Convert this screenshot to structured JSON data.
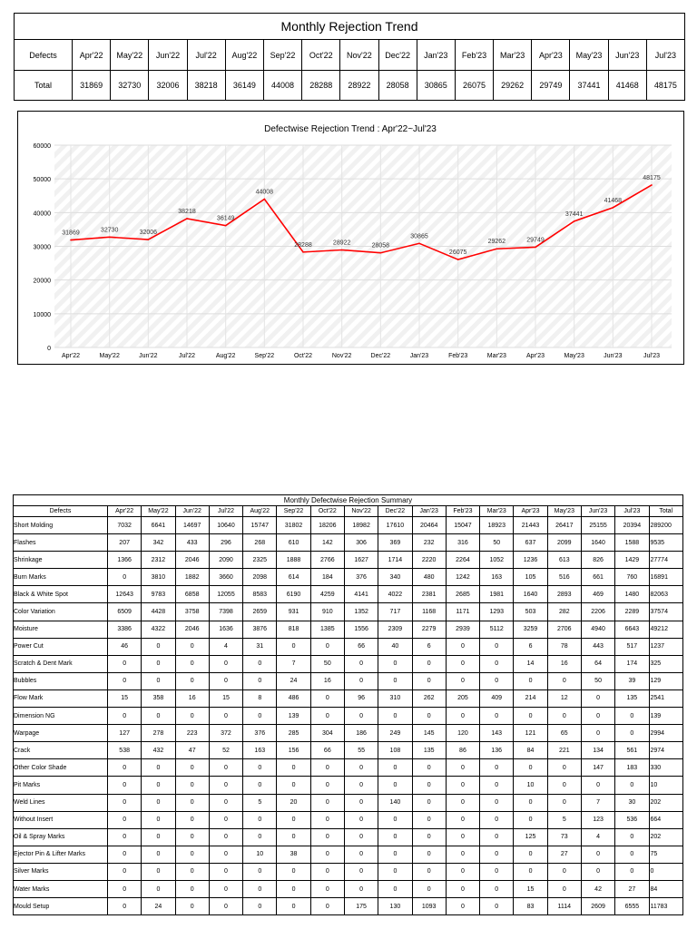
{
  "trend_table": {
    "title": "Monthly Rejection Trend",
    "row_header_label": "Defects",
    "months": [
      "Apr'22",
      "May'22",
      "Jun'22",
      "Jul'22",
      "Aug'22",
      "Sep'22",
      "Oct'22",
      "Nov'22",
      "Dec'22",
      "Jan'23",
      "Feb'23",
      "Mar'23",
      "Apr'23",
      "May'23",
      "Jun'23",
      "Jul'23"
    ],
    "total_label": "Total",
    "totals": [
      "31869",
      "32730",
      "32006",
      "38218",
      "36149",
      "44008",
      "28288",
      "28922",
      "28058",
      "30865",
      "26075",
      "29262",
      "29749",
      "37441",
      "41468",
      "48175"
    ]
  },
  "chart_data": {
    "type": "line",
    "title": "Defectwise Rejection Trend : Apr'22~Jul'23",
    "categories": [
      "Apr'22",
      "May'22",
      "Jun'22",
      "Jul'22",
      "Aug'22",
      "Sep'22",
      "Oct'22",
      "Nov'22",
      "Dec'22",
      "Jan'23",
      "Feb'23",
      "Mar'23",
      "Apr'23",
      "May'23",
      "Jun'23",
      "Jul'23"
    ],
    "series": [
      {
        "values": [
          31869,
          32730,
          32006,
          38218,
          36149,
          44008,
          28288,
          28922,
          28058,
          30865,
          26075,
          29262,
          29749,
          37441,
          41468,
          48175
        ],
        "color": "#ff0000"
      }
    ],
    "ylim": [
      0,
      60000
    ],
    "yticks": [
      0,
      10000,
      20000,
      30000,
      40000,
      50000,
      60000
    ],
    "xlabel": "",
    "ylabel": "",
    "grid": true,
    "data_labels": true
  },
  "summary_table": {
    "title": "Monthly Defectwise Rejection Summary",
    "headers": [
      "Defects",
      "Apr'22",
      "May'22",
      "Jun'22",
      "Jul'22",
      "Aug'22",
      "Sep'22",
      "Oct'22",
      "Nov'22",
      "Dec'22",
      "Jan'23",
      "Feb'23",
      "Mar'23",
      "Apr'23",
      "May'23",
      "Jun'23",
      "Jul'23",
      "Total"
    ],
    "rows": [
      [
        "Short Molding",
        "7032",
        "6641",
        "14697",
        "10640",
        "15747",
        "31802",
        "18206",
        "18982",
        "17610",
        "20464",
        "15047",
        "18923",
        "21443",
        "26417",
        "25155",
        "20394",
        "289200"
      ],
      [
        "Flashes",
        "207",
        "342",
        "433",
        "296",
        "268",
        "610",
        "142",
        "306",
        "369",
        "232",
        "316",
        "50",
        "637",
        "2099",
        "1640",
        "1588",
        "9535"
      ],
      [
        "Shrinkage",
        "1366",
        "2312",
        "2046",
        "2090",
        "2325",
        "1888",
        "2766",
        "1627",
        "1714",
        "2220",
        "2264",
        "1052",
        "1236",
        "613",
        "826",
        "1429",
        "27774"
      ],
      [
        "Burn Marks",
        "0",
        "3810",
        "1882",
        "3660",
        "2098",
        "614",
        "184",
        "376",
        "340",
        "480",
        "1242",
        "163",
        "105",
        "516",
        "661",
        "760",
        "16891"
      ],
      [
        "Black & White Spot",
        "12643",
        "9783",
        "6858",
        "12055",
        "8583",
        "6190",
        "4259",
        "4141",
        "4022",
        "2381",
        "2685",
        "1981",
        "1640",
        "2893",
        "469",
        "1480",
        "82063"
      ],
      [
        "Color Variation",
        "6509",
        "4428",
        "3758",
        "7398",
        "2659",
        "931",
        "910",
        "1352",
        "717",
        "1168",
        "1171",
        "1293",
        "503",
        "282",
        "2206",
        "2289",
        "37574"
      ],
      [
        "Moisture",
        "3386",
        "4322",
        "2046",
        "1636",
        "3876",
        "818",
        "1385",
        "1556",
        "2309",
        "2279",
        "2939",
        "5112",
        "3259",
        "2706",
        "4940",
        "6643",
        "49212"
      ],
      [
        "Power Cut",
        "46",
        "0",
        "0",
        "4",
        "31",
        "0",
        "0",
        "66",
        "40",
        "6",
        "0",
        "0",
        "6",
        "78",
        "443",
        "517",
        "1237"
      ],
      [
        "Scratch & Dent Mark",
        "0",
        "0",
        "0",
        "0",
        "0",
        "7",
        "50",
        "0",
        "0",
        "0",
        "0",
        "0",
        "14",
        "16",
        "64",
        "174",
        "325"
      ],
      [
        "Bubbles",
        "0",
        "0",
        "0",
        "0",
        "0",
        "24",
        "16",
        "0",
        "0",
        "0",
        "0",
        "0",
        "0",
        "0",
        "50",
        "39",
        "129"
      ],
      [
        "Flow Mark",
        "15",
        "358",
        "16",
        "15",
        "8",
        "486",
        "0",
        "96",
        "310",
        "262",
        "205",
        "409",
        "214",
        "12",
        "0",
        "135",
        "2541"
      ],
      [
        "Dimension NG",
        "0",
        "0",
        "0",
        "0",
        "0",
        "139",
        "0",
        "0",
        "0",
        "0",
        "0",
        "0",
        "0",
        "0",
        "0",
        "0",
        "139"
      ],
      [
        "Warpage",
        "127",
        "278",
        "223",
        "372",
        "376",
        "285",
        "304",
        "186",
        "249",
        "145",
        "120",
        "143",
        "121",
        "65",
        "0",
        "0",
        "2994"
      ],
      [
        "Crack",
        "538",
        "432",
        "47",
        "52",
        "163",
        "156",
        "66",
        "55",
        "108",
        "135",
        "86",
        "136",
        "84",
        "221",
        "134",
        "561",
        "2974"
      ],
      [
        "Other Color Shade",
        "0",
        "0",
        "0",
        "0",
        "0",
        "0",
        "0",
        "0",
        "0",
        "0",
        "0",
        "0",
        "0",
        "0",
        "147",
        "183",
        "330"
      ],
      [
        "Pit Marks",
        "0",
        "0",
        "0",
        "0",
        "0",
        "0",
        "0",
        "0",
        "0",
        "0",
        "0",
        "0",
        "10",
        "0",
        "0",
        "0",
        "10"
      ],
      [
        "Weld Lines",
        "0",
        "0",
        "0",
        "0",
        "5",
        "20",
        "0",
        "0",
        "140",
        "0",
        "0",
        "0",
        "0",
        "0",
        "7",
        "30",
        "202"
      ],
      [
        "Without Insert",
        "0",
        "0",
        "0",
        "0",
        "0",
        "0",
        "0",
        "0",
        "0",
        "0",
        "0",
        "0",
        "0",
        "5",
        "123",
        "536",
        "664"
      ],
      [
        "Oil & Spray Marks",
        "0",
        "0",
        "0",
        "0",
        "0",
        "0",
        "0",
        "0",
        "0",
        "0",
        "0",
        "0",
        "125",
        "73",
        "4",
        "0",
        "202"
      ],
      [
        "Ejector Pin & Lifter Marks",
        "0",
        "0",
        "0",
        "0",
        "10",
        "38",
        "0",
        "0",
        "0",
        "0",
        "0",
        "0",
        "0",
        "27",
        "0",
        "0",
        "75"
      ],
      [
        "Silver Marks",
        "0",
        "0",
        "0",
        "0",
        "0",
        "0",
        "0",
        "0",
        "0",
        "0",
        "0",
        "0",
        "0",
        "0",
        "0",
        "0",
        "0"
      ],
      [
        "Water Marks",
        "0",
        "0",
        "0",
        "0",
        "0",
        "0",
        "0",
        "0",
        "0",
        "0",
        "0",
        "0",
        "15",
        "0",
        "42",
        "27",
        "84"
      ],
      [
        "Mould Setup",
        "0",
        "24",
        "0",
        "0",
        "0",
        "0",
        "0",
        "175",
        "130",
        "1093",
        "0",
        "0",
        "83",
        "1114",
        "2609",
        "6555",
        "11783"
      ]
    ]
  }
}
